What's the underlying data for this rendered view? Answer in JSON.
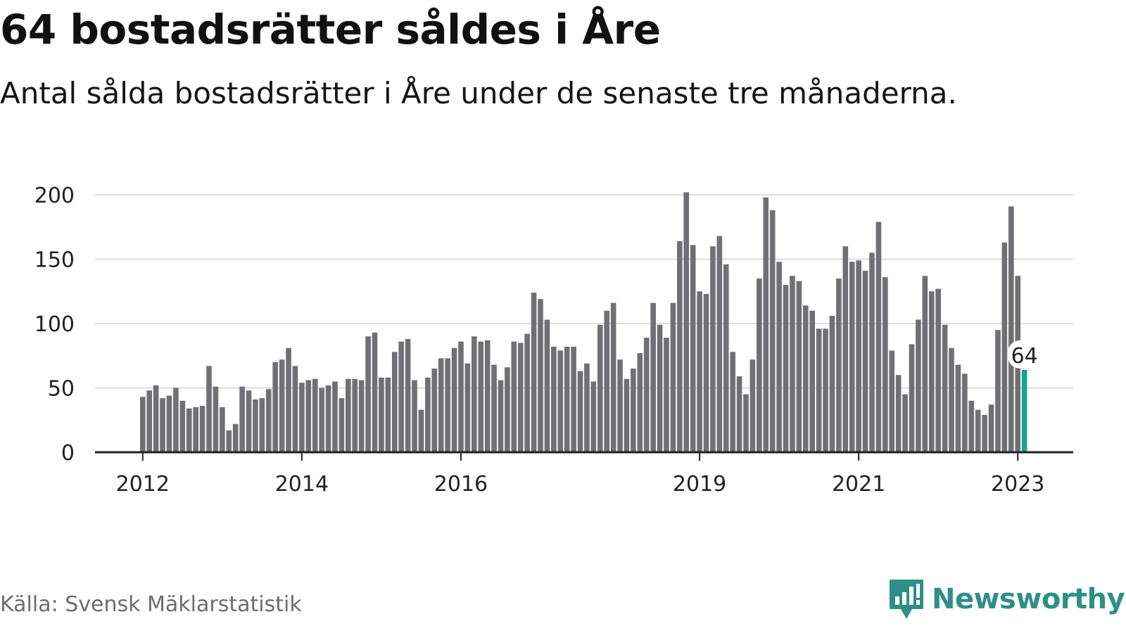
{
  "title": "64 bostadsrätter såldes i Åre",
  "subtitle": "Antal sålda bostadsrätter i Åre under de senaste tre månaderna.",
  "source": "Källa: Svensk Mäklarstatistik",
  "brand": "Newsworthy",
  "colors": {
    "bar": "#6f6f74",
    "highlight": "#16a394",
    "grid": "#dcdcdc",
    "axis": "#222222",
    "brand": "#2e8f86"
  },
  "chart_data": {
    "type": "bar",
    "title": "64 bostadsrätter såldes i Åre",
    "subtitle": "Antal sålda bostadsrätter i Åre under de senaste tre månaderna.",
    "xlabel": "",
    "ylabel": "",
    "ylim": [
      0,
      200
    ],
    "yticks": [
      0,
      50,
      100,
      150,
      200
    ],
    "grid": true,
    "legend": "none",
    "xtick_labels": [
      {
        "label": "2012",
        "bar_index": 0
      },
      {
        "label": "2014",
        "bar_index": 24
      },
      {
        "label": "2016",
        "bar_index": 48
      },
      {
        "label": "2019",
        "bar_index": 84
      },
      {
        "label": "2021",
        "bar_index": 108
      },
      {
        "label": "2023",
        "bar_index": 132
      }
    ],
    "values": [
      43,
      48,
      52,
      42,
      44,
      50,
      40,
      34,
      35,
      36,
      67,
      51,
      35,
      17,
      22,
      51,
      48,
      41,
      42,
      49,
      70,
      72,
      81,
      67,
      54,
      56,
      57,
      50,
      52,
      55,
      42,
      57,
      57,
      56,
      90,
      93,
      58,
      58,
      78,
      86,
      88,
      56,
      33,
      58,
      65,
      73,
      73,
      81,
      86,
      69,
      90,
      86,
      87,
      68,
      56,
      66,
      86,
      85,
      92,
      124,
      119,
      103,
      82,
      79,
      82,
      82,
      63,
      69,
      55,
      99,
      110,
      116,
      72,
      57,
      65,
      77,
      89,
      116,
      99,
      89,
      116,
      164,
      202,
      161,
      125,
      123,
      160,
      168,
      146,
      78,
      59,
      45,
      72,
      135,
      198,
      188,
      148,
      130,
      137,
      133,
      114,
      110,
      96,
      96,
      106,
      135,
      160,
      148,
      149,
      141,
      155,
      179,
      136,
      79,
      60,
      45,
      84,
      103,
      137,
      125,
      127,
      99,
      81,
      68,
      61,
      40,
      33,
      29,
      37,
      95,
      163,
      191,
      137,
      64
    ],
    "highlight_index": 133,
    "highlight_label": "64"
  }
}
